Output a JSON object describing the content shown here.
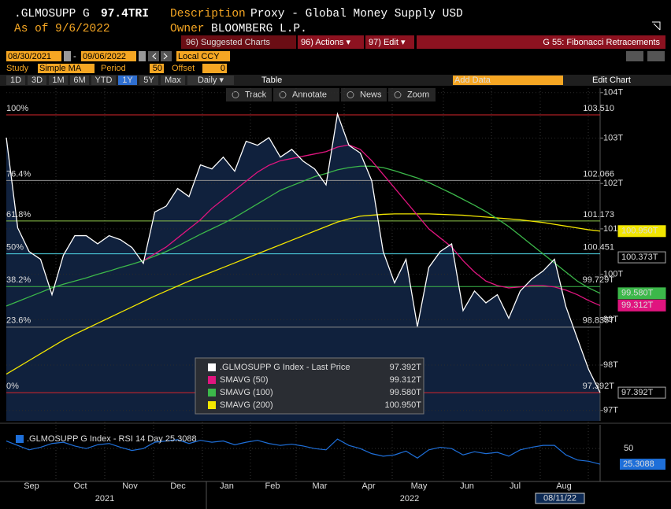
{
  "header": {
    "ticker": ".GLMOSUPP G",
    "price": "97.4TRI",
    "description_label": "Description",
    "description": "Proxy - Global Money Supply USD",
    "as_of_label": "As of",
    "as_of": "9/6/2022",
    "owner_label": "Owner",
    "owner": "BLOOMBERG L.P."
  },
  "menu": {
    "suggested": "96) Suggested Charts",
    "actions": "96) Actions ▾",
    "edit": "97) Edit ▾",
    "title": "G 55: Fibonacci Retracements"
  },
  "range": {
    "start": "08/30/2021",
    "end": "09/06/2022",
    "currency": "Local CCY"
  },
  "study": {
    "label": "Study",
    "value": "Simple MA",
    "period_label": "Period",
    "period": "50",
    "offset_label": "Offset",
    "offset": "0"
  },
  "periods": [
    "1D",
    "3D",
    "1M",
    "6M",
    "YTD",
    "1Y",
    "5Y",
    "Max",
    "Daily ▾"
  ],
  "selected_period": "1Y",
  "table": "Table",
  "add_data": "Add Data",
  "edit_chart": "Edit Chart",
  "tools": [
    "Track",
    "Annotate",
    "News",
    "Zoom"
  ],
  "chart_data": {
    "type": "line",
    "ylim": [
      96.77,
      104.1
    ],
    "yticks": [
      {
        "value": 97,
        "label": "97T"
      },
      {
        "value": 98,
        "label": "98T"
      },
      {
        "value": 99,
        "label": "99T"
      },
      {
        "value": 100,
        "label": "100T"
      },
      {
        "value": 101,
        "label": "101T"
      },
      {
        "value": 102,
        "label": "102T"
      },
      {
        "value": 103,
        "label": "103T"
      },
      {
        "value": 104,
        "label": "104T"
      }
    ],
    "series": [
      {
        "name": ".GLMOSUPP G Index - Last Price",
        "value_label": "97.392T",
        "color": "#ffffff",
        "values": [
          103.01,
          101.02,
          100.5,
          100.33,
          99.55,
          100.42,
          100.85,
          100.85,
          100.67,
          100.85,
          100.76,
          100.59,
          100.24,
          101.37,
          101.5,
          101.89,
          101.71,
          102.41,
          102.32,
          102.58,
          102.27,
          102.93,
          102.84,
          103.01,
          102.58,
          102.75,
          102.49,
          102.32,
          101.97,
          103.53,
          102.84,
          102.67,
          102.06,
          100.5,
          99.81,
          100.33,
          98.85,
          100.15,
          100.5,
          100.67,
          99.2,
          99.63,
          99.37,
          99.55,
          99.03,
          99.63,
          99.89,
          100.07,
          100.33,
          99.29,
          98.59,
          97.9,
          97.392
        ]
      },
      {
        "name": "SMAVG (50)",
        "value_label": "99.312T",
        "color": "#e0157f",
        "values": [
          null,
          null,
          null,
          null,
          null,
          null,
          null,
          null,
          null,
          null,
          null,
          null,
          100.3,
          100.45,
          100.6,
          100.8,
          101.0,
          101.2,
          101.45,
          101.65,
          101.85,
          102.05,
          102.25,
          102.4,
          102.5,
          102.55,
          102.6,
          102.65,
          102.7,
          102.8,
          102.85,
          102.75,
          102.5,
          102.2,
          101.9,
          101.6,
          101.3,
          101.0,
          100.8,
          100.6,
          100.3,
          100.05,
          99.85,
          99.75,
          99.7,
          99.72,
          99.75,
          99.75,
          99.72,
          99.65,
          99.55,
          99.42,
          99.31
        ]
      },
      {
        "name": "SMAVG (100)",
        "value_label": "99.580T",
        "color": "#3cb84a",
        "values": [
          99.3,
          99.4,
          99.5,
          99.6,
          99.7,
          99.78,
          99.85,
          99.92,
          100.0,
          100.07,
          100.15,
          100.22,
          100.3,
          100.4,
          100.5,
          100.62,
          100.75,
          100.88,
          101.0,
          101.12,
          101.25,
          101.4,
          101.55,
          101.7,
          101.85,
          101.95,
          102.05,
          102.15,
          102.22,
          102.3,
          102.35,
          102.38,
          102.38,
          102.35,
          102.28,
          102.2,
          102.12,
          102.02,
          101.9,
          101.78,
          101.65,
          101.52,
          101.38,
          101.22,
          101.05,
          100.85,
          100.65,
          100.45,
          100.25,
          100.05,
          99.85,
          99.7,
          99.58
        ]
      },
      {
        "name": "SMAVG (200)",
        "value_label": "100.950T",
        "color": "#f2e600",
        "values": [
          97.8,
          97.95,
          98.1,
          98.25,
          98.4,
          98.55,
          98.68,
          98.8,
          98.92,
          99.04,
          99.16,
          99.28,
          99.4,
          99.52,
          99.63,
          99.74,
          99.85,
          99.95,
          100.05,
          100.15,
          100.25,
          100.35,
          100.45,
          100.55,
          100.65,
          100.75,
          100.85,
          100.95,
          101.05,
          101.15,
          101.22,
          101.28,
          101.3,
          101.32,
          101.33,
          101.33,
          101.33,
          101.33,
          101.32,
          101.31,
          101.3,
          101.28,
          101.26,
          101.24,
          101.22,
          101.2,
          101.17,
          101.14,
          101.1,
          101.06,
          101.02,
          100.98,
          100.95
        ]
      }
    ],
    "fib_levels": [
      {
        "pct": "100%",
        "value": 103.51,
        "label": "103.510",
        "color": "#d9262c"
      },
      {
        "pct": "76.4%",
        "value": 102.066,
        "label": "102.066",
        "color": "#8c8c8c"
      },
      {
        "pct": "61.8%",
        "value": 101.173,
        "label": "101.173",
        "color": "#8bc34a"
      },
      {
        "pct": "50%",
        "value": 100.451,
        "label": "100.451",
        "color": "#4fd8e8"
      },
      {
        "pct": "38.2%",
        "value": 99.729,
        "label": "99.729T",
        "color": "#3cb84a"
      },
      {
        "pct": "23.6%",
        "value": 98.835,
        "label": "98.835T",
        "color": "#8c8c8c"
      },
      {
        "pct": "0%",
        "value": 97.392,
        "label": "97.392T",
        "color": "#d9262c"
      }
    ],
    "price_tags": [
      {
        "value": 100.95,
        "label": "100.950T",
        "color": "#f2e600",
        "text_color": "#000000"
      },
      {
        "value": 100.373,
        "label": "100.373T",
        "color": "#000000",
        "text_color": "#ffffff"
      },
      {
        "value": 99.58,
        "label": "99.580T",
        "color": "#3cb84a",
        "text_color": "#000000"
      },
      {
        "value": 99.312,
        "label": "99.312T",
        "color": "#e0157f",
        "text_color": "#ffffff"
      },
      {
        "value": 97.392,
        "label": "97.392T",
        "color": "#000000",
        "text_color": "#ffffff"
      }
    ],
    "x_labels": [
      "Sep",
      "Oct",
      "Nov",
      "Dec",
      "Jan",
      "Feb",
      "Mar",
      "Apr",
      "May",
      "Jun",
      "Jul",
      "Aug"
    ],
    "years": [
      "2021",
      "2022"
    ],
    "date_tag": "08/11/22"
  },
  "rsi": {
    "label": ".GLMOSUPP G Index - RSI 14 Day 25.3088",
    "color": "#1e6fd9",
    "ylim": [
      8,
      85
    ],
    "yticks": [
      50
    ],
    "values": [
      62,
      55,
      48,
      52,
      58,
      60,
      54,
      50,
      56,
      58,
      52,
      47,
      50,
      60,
      62,
      64,
      58,
      63,
      60,
      62,
      56,
      60,
      63,
      58,
      55,
      57,
      54,
      50,
      48,
      65,
      55,
      50,
      42,
      38,
      40,
      46,
      35,
      48,
      52,
      50,
      40,
      45,
      42,
      44,
      38,
      48,
      52,
      55,
      55,
      40,
      32,
      30,
      25.3088
    ]
  }
}
